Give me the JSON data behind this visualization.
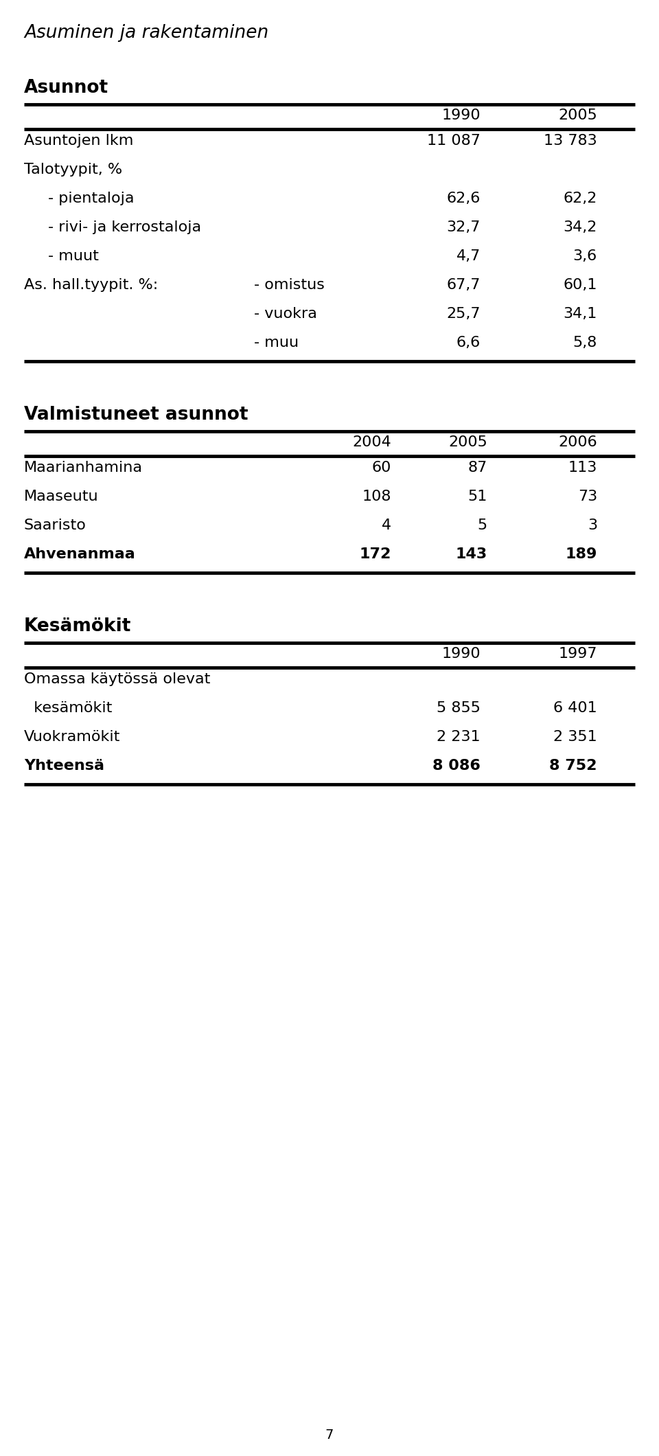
{
  "main_title": "Asuminen ja rakentaminen",
  "section1_title": "Asunnot",
  "section1_cols": [
    "1990",
    "2005"
  ],
  "section2_title": "Valmistuneet asunnot",
  "section2_cols": [
    "2004",
    "2005",
    "2006"
  ],
  "section3_title": "Kesämökit",
  "section3_cols": [
    "1990",
    "1997"
  ],
  "s1_rows": [
    {
      "label": "Asuntojen lkm",
      "v1": "11 087",
      "v2": "13 783",
      "indent": 0,
      "bold": false,
      "el": null,
      "ev1": null,
      "ev2": null
    },
    {
      "label": "Talotyypit, %",
      "v1": "",
      "v2": "",
      "indent": 0,
      "bold": false,
      "el": null,
      "ev1": null,
      "ev2": null
    },
    {
      "label": "- pientaloja",
      "v1": "62,6",
      "v2": "62,2",
      "indent": 1,
      "bold": false,
      "el": null,
      "ev1": null,
      "ev2": null
    },
    {
      "label": "- rivi- ja kerrostaloja",
      "v1": "32,7",
      "v2": "34,2",
      "indent": 1,
      "bold": false,
      "el": null,
      "ev1": null,
      "ev2": null
    },
    {
      "label": "- muut",
      "v1": "4,7",
      "v2": "3,6",
      "indent": 1,
      "bold": false,
      "el": null,
      "ev1": null,
      "ev2": null
    },
    {
      "label": "As. hall.tyypit. %:",
      "v1": "",
      "v2": "",
      "indent": 0,
      "bold": false,
      "el": "- omistus",
      "ev1": "67,7",
      "ev2": "60,1"
    },
    {
      "label": "",
      "v1": "",
      "v2": "",
      "indent": 0,
      "bold": false,
      "el": "- vuokra",
      "ev1": "25,7",
      "ev2": "34,1"
    },
    {
      "label": "",
      "v1": "",
      "v2": "",
      "indent": 0,
      "bold": false,
      "el": "- muu",
      "ev1": "6,6",
      "ev2": "5,8"
    }
  ],
  "s2_rows": [
    {
      "label": "Maarianhamina",
      "v1": "60",
      "v2": "87",
      "v3": "113",
      "bold": false
    },
    {
      "label": "Maaseutu",
      "v1": "108",
      "v2": "51",
      "v3": "73",
      "bold": false
    },
    {
      "label": "Saaristo",
      "v1": "4",
      "v2": "5",
      "v3": "3",
      "bold": false
    },
    {
      "label": "Ahvenanmaa",
      "v1": "172",
      "v2": "143",
      "v3": "189",
      "bold": true
    }
  ],
  "s3_rows": [
    {
      "label": "Omassa käytössä olevat",
      "v1": "",
      "v2": "",
      "bold": false
    },
    {
      "label": "  kesämökit",
      "v1": "5 855",
      "v2": "6 401",
      "bold": false
    },
    {
      "label": "Vuokramökit",
      "v1": "2 231",
      "v2": "2 351",
      "bold": false
    },
    {
      "label": "Yhteensä",
      "v1": "8 086",
      "v2": "8 752",
      "bold": true
    }
  ],
  "page_number": "7",
  "bg_color": "#ffffff",
  "text_color": "#000000"
}
